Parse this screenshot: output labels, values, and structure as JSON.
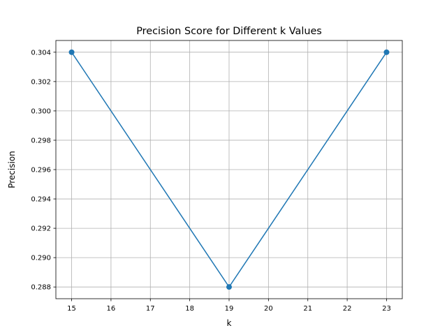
{
  "chart_data": {
    "type": "line",
    "title": "Precision Score for Different k Values",
    "xlabel": "k",
    "ylabel": "Precision",
    "x": [
      15,
      19,
      23
    ],
    "series": [
      {
        "values": [
          0.304,
          0.288,
          0.304
        ]
      }
    ],
    "xlim": [
      14.6,
      23.4
    ],
    "ylim": [
      0.2872,
      0.3048
    ],
    "xticks": [
      15,
      16,
      17,
      18,
      19,
      20,
      21,
      22,
      23
    ],
    "yticks": [
      0.288,
      0.29,
      0.292,
      0.294,
      0.296,
      0.298,
      0.3,
      0.302,
      0.304
    ],
    "ytick_labels": [
      "0.288",
      "0.290",
      "0.292",
      "0.294",
      "0.296",
      "0.298",
      "0.300",
      "0.302",
      "0.304"
    ],
    "grid": true,
    "marker": "circle",
    "colors": {
      "series": "#1f77b4",
      "grid": "#b0b0b0",
      "axis": "#000000"
    }
  }
}
